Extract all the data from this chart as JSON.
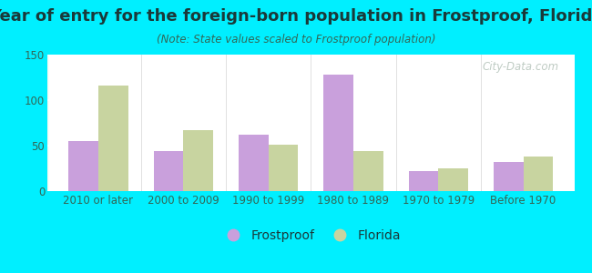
{
  "title": "Year of entry for the foreign-born population in Frostproof, Florida",
  "subtitle": "(Note: State values scaled to Frostproof population)",
  "categories": [
    "2010 or later",
    "2000 to 2009",
    "1990 to 1999",
    "1980 to 1989",
    "1970 to 1979",
    "Before 1970"
  ],
  "frostproof": [
    55,
    44,
    62,
    128,
    22,
    32
  ],
  "florida": [
    116,
    67,
    51,
    44,
    25,
    38
  ],
  "frostproof_color": "#c9a0dc",
  "florida_color": "#c8d4a0",
  "background_outer": "#00efff",
  "ylim": [
    0,
    150
  ],
  "yticks": [
    0,
    50,
    100,
    150
  ],
  "bar_width": 0.35,
  "title_fontsize": 13,
  "subtitle_fontsize": 8.5,
  "tick_fontsize": 8.5,
  "legend_fontsize": 10,
  "watermark": "City-Data.com"
}
